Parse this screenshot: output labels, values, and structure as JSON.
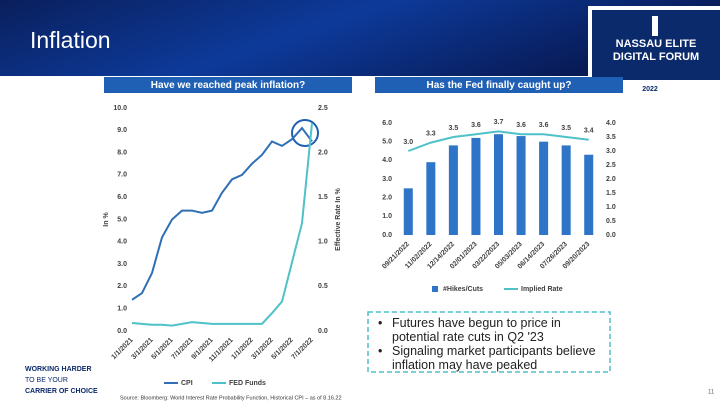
{
  "title": "Inflation",
  "logo": {
    "name": "NASSAU ELITE DIGITAL FORUM",
    "year": "2022"
  },
  "bullets": [
    "Futures have begun to price in potential rate cuts in Q2 '23",
    "Signaling market participants believe inflation may have peaked"
  ],
  "tagline": [
    "WORKING HARDER",
    "TO BE YOUR",
    "CARRIER OF CHOICE"
  ],
  "source": "Source: Bloomberg: World Interest Rate Probability Function, Historical CPI – as of 8.16.22",
  "page_number": "11",
  "chart_data": [
    {
      "type": "line",
      "title": "Have we reached peak inflation?",
      "categories": [
        "1/1/2021",
        null,
        "3/1/2021",
        null,
        "5/1/2021",
        null,
        "7/1/2021",
        null,
        "9/1/2021",
        null,
        "11/1/2021",
        null,
        "1/1/2022",
        null,
        "3/1/2022",
        null,
        "5/1/2022",
        null,
        "7/1/2022"
      ],
      "y_label": "In %",
      "y2_label": "Effective Rate In %",
      "series": [
        {
          "name": "CPI",
          "color": "#2e6fb5",
          "axis": "y",
          "values": [
            1.4,
            1.7,
            2.6,
            4.2,
            5.0,
            5.4,
            5.4,
            5.3,
            5.4,
            6.2,
            6.8,
            7.0,
            7.5,
            7.9,
            8.5,
            8.3,
            8.6,
            9.1,
            8.5
          ]
        },
        {
          "name": "FED Funds",
          "color": "#4fc1c9",
          "axis": "y2",
          "values": [
            0.09,
            0.08,
            0.07,
            0.07,
            0.06,
            0.08,
            0.1,
            0.09,
            0.08,
            0.08,
            0.08,
            0.08,
            0.08,
            0.08,
            0.2,
            0.33,
            0.77,
            1.21,
            2.33
          ]
        }
      ],
      "ylim": [
        0,
        10
      ],
      "yticks": [
        {
          "value": 0,
          "label": "0.0"
        },
        {
          "value": 1,
          "label": "1.0"
        },
        {
          "value": 2,
          "label": "2.0"
        },
        {
          "value": 3,
          "label": "3.0"
        },
        {
          "value": 4,
          "label": "4.0"
        },
        {
          "value": 5,
          "label": "5.0"
        },
        {
          "value": 6,
          "label": "6.0"
        },
        {
          "value": 7,
          "label": "7.0"
        },
        {
          "value": 8,
          "label": "8.0"
        },
        {
          "value": 9,
          "label": "9.0"
        },
        {
          "value": 10,
          "label": "10.0"
        }
      ],
      "y2lim": [
        0,
        2.5
      ],
      "y2ticks": [
        {
          "value": 0,
          "label": "0.0"
        },
        0.5,
        {
          "value": 1,
          "label": "1.0"
        },
        1.5,
        {
          "value": 2,
          "label": "2.0"
        },
        2.5
      ],
      "grid": false
    },
    {
      "type": "bar",
      "title": "Has the Fed finally caught up?",
      "categories": [
        "09/21/2022",
        "11/02/2022",
        "12/14/2022",
        "02/01/2023",
        "03/22/2023",
        "05/03/2023",
        "06/14/2023",
        "07/26/2023",
        "09/20/2023"
      ],
      "series": [
        {
          "name": "#Hikes/Cuts",
          "type": "bar",
          "color": "#2e75c8",
          "axis": "y",
          "values": [
            2.5,
            3.9,
            4.8,
            5.2,
            5.4,
            5.3,
            5.0,
            4.8,
            4.3
          ]
        },
        {
          "name": "Implied Rate",
          "type": "line",
          "color": "#4fc1c9",
          "axis": "y2",
          "values": [
            3.0,
            3.3,
            3.5,
            3.6,
            3.7,
            3.6,
            3.6,
            3.5,
            3.4
          ],
          "value_labels": [
            "3.0",
            "3.3",
            "3.5",
            "3.6",
            "3.7",
            "3.6",
            "3.6",
            "3.5",
            "3.4"
          ]
        }
      ],
      "ylim": [
        0,
        6
      ],
      "yticks": [
        {
          "value": 0,
          "label": "0.0"
        },
        {
          "value": 1,
          "label": "1.0"
        },
        {
          "value": 2,
          "label": "2.0"
        },
        {
          "value": 3,
          "label": "3.0"
        },
        {
          "value": 4,
          "label": "4.0"
        },
        {
          "value": 5,
          "label": "5.0"
        },
        {
          "value": 6,
          "label": "6.0"
        }
      ],
      "y2lim": [
        0,
        4
      ],
      "y2ticks": [
        {
          "value": 0,
          "label": "0.0"
        },
        0.5,
        {
          "value": 1,
          "label": "1.0"
        },
        1.5,
        {
          "value": 2,
          "label": "2.0"
        },
        2.5,
        {
          "value": 3,
          "label": "3.0"
        },
        3.5,
        {
          "value": 4,
          "label": "4.0"
        }
      ],
      "grid": false
    }
  ]
}
